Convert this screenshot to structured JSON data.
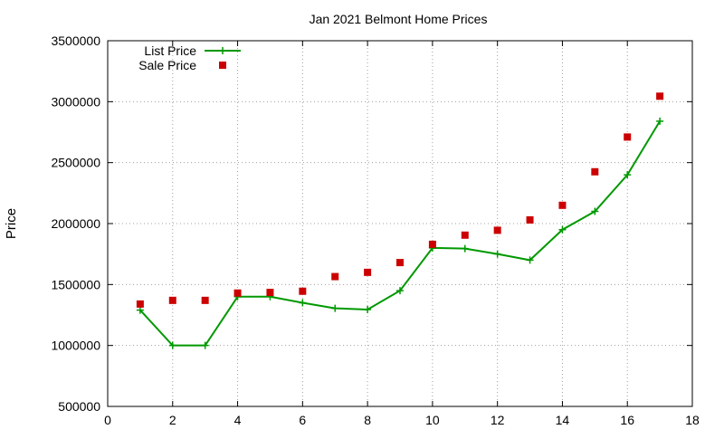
{
  "chart_data": {
    "type": "line",
    "title": "Jan 2021 Belmont Home Prices",
    "xlabel": "",
    "ylabel": "Price",
    "xlim": [
      0,
      18
    ],
    "ylim": [
      500000,
      3500000
    ],
    "x_ticks": [
      0,
      2,
      4,
      6,
      8,
      10,
      12,
      14,
      16,
      18
    ],
    "y_ticks": [
      500000,
      1000000,
      1500000,
      2000000,
      2500000,
      3000000,
      3500000
    ],
    "grid": true,
    "legend_position": "top-left",
    "series": [
      {
        "name": "List Price",
        "style": "line+crosses",
        "color": "#009900",
        "x": [
          1,
          2,
          3,
          4,
          5,
          6,
          7,
          8,
          9,
          10,
          11,
          12,
          13,
          14,
          15,
          16,
          17
        ],
        "values": [
          1290000,
          1000000,
          1000000,
          1400000,
          1400000,
          1350000,
          1305000,
          1295000,
          1450000,
          1800000,
          1795000,
          1750000,
          1700000,
          1950000,
          2100000,
          2400000,
          2840000
        ]
      },
      {
        "name": "Sale Price",
        "style": "squares",
        "color": "#cc0000",
        "x": [
          1,
          2,
          3,
          4,
          5,
          6,
          7,
          8,
          9,
          10,
          11,
          12,
          13,
          14,
          15,
          16,
          17
        ],
        "values": [
          1340000,
          1370000,
          1370000,
          1430000,
          1435000,
          1445000,
          1565000,
          1600000,
          1680000,
          1830000,
          1905000,
          1945000,
          2030000,
          2150000,
          2425000,
          2710000,
          3045000
        ]
      }
    ]
  }
}
